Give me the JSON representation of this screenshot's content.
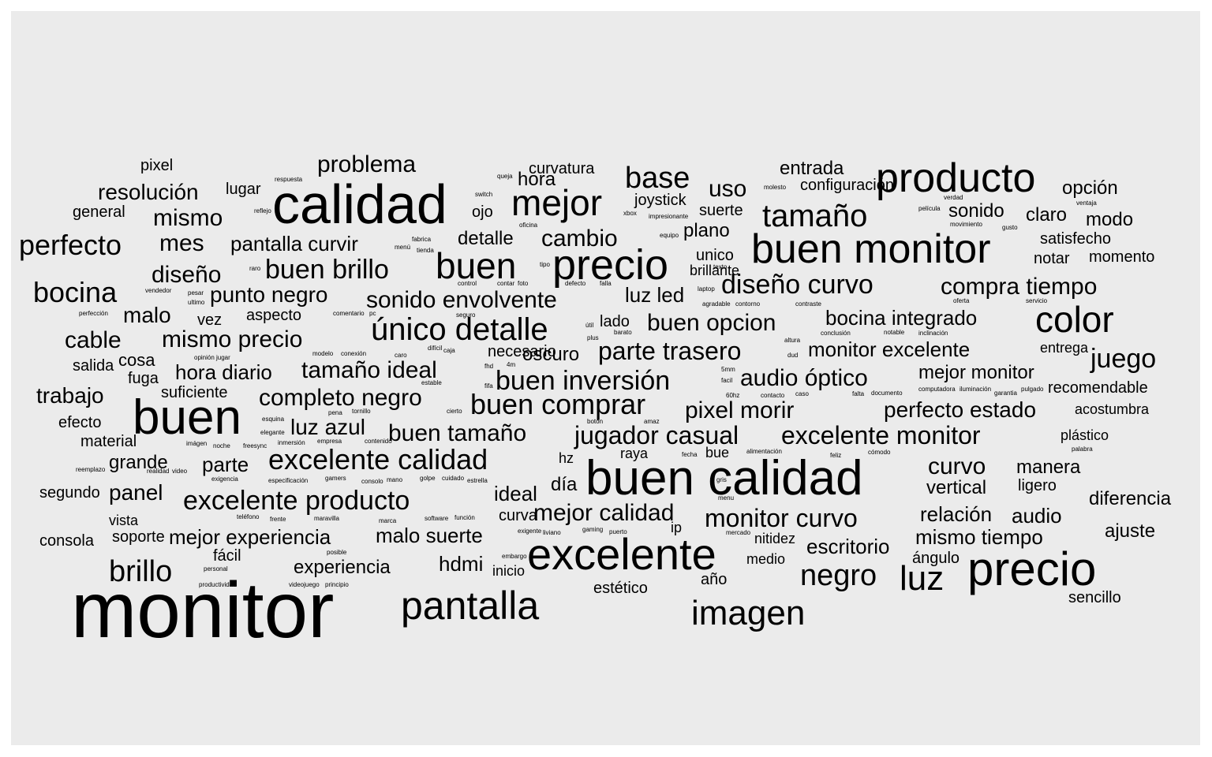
{
  "chart_data": {
    "type": "wordcloud",
    "background_color": "#ebebeb",
    "text_color": "#000000",
    "words": [
      {
        "text": "monitor",
        "weight": 100
      },
      {
        "text": "calidad",
        "weight": 68
      },
      {
        "text": "buen calidad",
        "weight": 70
      },
      {
        "text": "buen",
        "weight": 62
      },
      {
        "text": "excelente",
        "weight": 60
      },
      {
        "text": "precio",
        "weight": 60
      },
      {
        "text": "buen monitor",
        "weight": 56
      },
      {
        "text": "producto",
        "weight": 54
      },
      {
        "text": "precio",
        "weight": 54
      },
      {
        "text": "pantalla",
        "weight": 52
      },
      {
        "text": "mejor",
        "weight": 50
      },
      {
        "text": "buen",
        "weight": 50
      },
      {
        "text": "imagen",
        "weight": 48
      },
      {
        "text": "color",
        "weight": 48
      },
      {
        "text": "luz",
        "weight": 46
      },
      {
        "text": "único detalle",
        "weight": 45
      },
      {
        "text": "tamaño",
        "weight": 44
      },
      {
        "text": "negro",
        "weight": 42
      },
      {
        "text": "base",
        "weight": 41
      },
      {
        "text": "brillo",
        "weight": 40
      },
      {
        "text": "buen comprar",
        "weight": 40
      },
      {
        "text": "excelente calidad",
        "weight": 40
      },
      {
        "text": "buen inversión",
        "weight": 38
      },
      {
        "text": "juego",
        "weight": 37
      },
      {
        "text": "perfecto",
        "weight": 37
      },
      {
        "text": "excelente monitor",
        "weight": 36
      },
      {
        "text": "excelente producto",
        "weight": 36
      },
      {
        "text": "diseño curvo",
        "weight": 36
      },
      {
        "text": "bocina",
        "weight": 36
      },
      {
        "text": "buen brillo",
        "weight": 35
      },
      {
        "text": "parte trasero",
        "weight": 35
      },
      {
        "text": "monitor curvo",
        "weight": 35
      },
      {
        "text": "jugador casual",
        "weight": 34
      },
      {
        "text": "mes",
        "weight": 33
      },
      {
        "text": "cambio",
        "weight": 33
      },
      {
        "text": "mismo",
        "weight": 33
      },
      {
        "text": "compra tiempo",
        "weight": 33
      },
      {
        "text": "curvo",
        "weight": 33
      },
      {
        "text": "audio óptico",
        "weight": 32
      },
      {
        "text": "diseño",
        "weight": 32
      },
      {
        "text": "tamaño ideal",
        "weight": 32
      },
      {
        "text": "mismo precio",
        "weight": 32
      },
      {
        "text": "sonido envolvente",
        "weight": 32
      },
      {
        "text": "pixel morir",
        "weight": 31
      },
      {
        "text": "buen tamaño",
        "weight": 31
      },
      {
        "text": "mejor calidad",
        "weight": 31
      },
      {
        "text": "completo negro",
        "weight": 31
      },
      {
        "text": "problema",
        "weight": 31
      },
      {
        "text": "buen opcion",
        "weight": 31
      },
      {
        "text": "uso",
        "weight": 31
      },
      {
        "text": "luz azul",
        "weight": 31
      },
      {
        "text": "perfecto estado",
        "weight": 30
      },
      {
        "text": "resolución",
        "weight": 30
      },
      {
        "text": "punto negro",
        "weight": 30
      },
      {
        "text": "cable",
        "weight": 30
      },
      {
        "text": "trabajo",
        "weight": 30
      },
      {
        "text": "malo",
        "weight": 30
      },
      {
        "text": "malo suerte",
        "weight": 29
      },
      {
        "text": "panel",
        "weight": 29
      },
      {
        "text": "pantalla curvir",
        "weight": 29
      },
      {
        "text": "monitor excelente",
        "weight": 29
      },
      {
        "text": "bocina integrado",
        "weight": 29
      },
      {
        "text": "mejor experiencia",
        "weight": 28
      },
      {
        "text": "mismo tiempo",
        "weight": 28
      },
      {
        "text": "luz led",
        "weight": 28
      },
      {
        "text": "hdmi",
        "weight": 28
      },
      {
        "text": "ideal",
        "weight": 28
      },
      {
        "text": "escritorio",
        "weight": 28
      },
      {
        "text": "relación",
        "weight": 28
      },
      {
        "text": "audio",
        "weight": 28
      },
      {
        "text": "hora diario",
        "weight": 28
      },
      {
        "text": "parte",
        "weight": 28
      },
      {
        "text": "mejor monitor",
        "weight": 27
      },
      {
        "text": "grande",
        "weight": 27
      },
      {
        "text": "entrada",
        "weight": 27
      },
      {
        "text": "opción",
        "weight": 27
      },
      {
        "text": "manera",
        "weight": 27
      },
      {
        "text": "diferencia",
        "weight": 27
      },
      {
        "text": "plano",
        "weight": 27
      },
      {
        "text": "oscuro",
        "weight": 26
      },
      {
        "text": "claro",
        "weight": 26
      },
      {
        "text": "día",
        "weight": 26
      },
      {
        "text": "curvatura",
        "weight": 25
      },
      {
        "text": "modo",
        "weight": 25
      },
      {
        "text": "ajuste",
        "weight": 25
      },
      {
        "text": "joystick",
        "weight": 24
      },
      {
        "text": "detalle",
        "weight": 24
      },
      {
        "text": "hora",
        "weight": 24
      },
      {
        "text": "vertical",
        "weight": 24
      },
      {
        "text": "aspecto",
        "weight": 23
      },
      {
        "text": "experiencia",
        "weight": 23
      },
      {
        "text": "cosa",
        "weight": 23
      },
      {
        "text": "sonido",
        "weight": 23
      },
      {
        "text": "ligero",
        "weight": 22
      },
      {
        "text": "lugar",
        "weight": 22
      },
      {
        "text": "unico",
        "weight": 22
      },
      {
        "text": "satisfecho",
        "weight": 22
      },
      {
        "text": "notar",
        "weight": 22
      },
      {
        "text": "momento",
        "weight": 22
      },
      {
        "text": "suerte",
        "weight": 22
      },
      {
        "text": "lado",
        "weight": 22
      },
      {
        "text": "pixel",
        "weight": 22
      },
      {
        "text": "configuración",
        "weight": 22
      },
      {
        "text": "suficiente",
        "weight": 21
      },
      {
        "text": "necesario",
        "weight": 21
      },
      {
        "text": "fácil",
        "weight": 21
      },
      {
        "text": "estético",
        "weight": 21
      },
      {
        "text": "ángulo",
        "weight": 21
      },
      {
        "text": "curva",
        "weight": 21
      },
      {
        "text": "ojo",
        "weight": 21
      },
      {
        "text": "año",
        "weight": 21
      },
      {
        "text": "general",
        "weight": 21
      },
      {
        "text": "segundo",
        "weight": 20
      },
      {
        "text": "consola",
        "weight": 20
      },
      {
        "text": "soporte",
        "weight": 20
      },
      {
        "text": "efecto",
        "weight": 20
      },
      {
        "text": "material",
        "weight": 20
      },
      {
        "text": "salida",
        "weight": 20
      },
      {
        "text": "fuga",
        "weight": 20
      },
      {
        "text": "vez",
        "weight": 20
      },
      {
        "text": "vista",
        "weight": 20
      },
      {
        "text": "sencillo",
        "weight": 19
      },
      {
        "text": "recomendable",
        "weight": 20
      },
      {
        "text": "acostumbra",
        "weight": 20
      },
      {
        "text": "plástico",
        "weight": 19
      },
      {
        "text": "entrega",
        "weight": 19
      },
      {
        "text": "medio",
        "weight": 19
      },
      {
        "text": "nitidez",
        "weight": 19
      },
      {
        "text": "inicio",
        "weight": 19
      },
      {
        "text": "bue",
        "weight": 19
      },
      {
        "text": "raya",
        "weight": 19
      },
      {
        "text": "brillante",
        "weight": 18
      },
      {
        "text": "hz",
        "weight": 18
      },
      {
        "text": "ip",
        "weight": 18
      },
      {
        "text": "vga",
        "weight": 18
      }
    ],
    "small_words": [
      "respuesta",
      "reflejo",
      "fabrica",
      "menú",
      "tienda",
      "raro",
      "ultimo",
      "perfección",
      "opinión",
      "jugar",
      "pesar",
      "vendedor",
      "modelo",
      "conexión",
      "caro",
      "difícil",
      "caja",
      "comentario",
      "pc",
      "seguro",
      "control",
      "contar",
      "defecto",
      "falla",
      "queja",
      "switch",
      "oficina",
      "foto",
      "tipo",
      "xbox",
      "impresionante",
      "equipo",
      "molesto",
      "verdad",
      "película",
      "gusto",
      "movimiento",
      "ventaja",
      "texto",
      "laptop",
      "agradable",
      "contorno",
      "contraste",
      "oferta",
      "servicio",
      "útil",
      "plus",
      "barato",
      "notable",
      "inclinación",
      "altura",
      "dud",
      "conclusión",
      "5mm",
      "facil",
      "60hz",
      "contacto",
      "caso",
      "falta",
      "documento",
      "computadora",
      "iluminación",
      "garantia",
      "pulgado",
      "fhd",
      "4m",
      "fifa",
      "estable",
      "cierto",
      "pena",
      "tornillo",
      "esquina",
      "elegante",
      "inmersión",
      "empresa",
      "contenido",
      "botón",
      "amaz",
      "fecha",
      "alimentación",
      "feliz",
      "cómodo",
      "palabra",
      "imágen",
      "noche",
      "freesync",
      "reemplazo",
      "realidad",
      "video",
      "exigencia",
      "especificación",
      "gamers",
      "consolo",
      "mano",
      "golpe",
      "cuidado",
      "estrella",
      "gris",
      "menu",
      "teléfono",
      "frente",
      "maravilla",
      "marca",
      "software",
      "función",
      "exigente",
      "liviano",
      "gaming",
      "puerto",
      "mercado",
      "posible",
      "personal",
      "embargo",
      "productividad",
      "videojuego",
      "principio"
    ]
  }
}
